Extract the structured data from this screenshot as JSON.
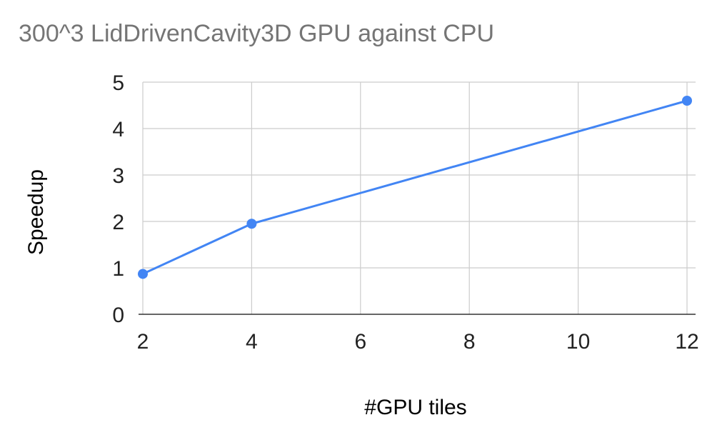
{
  "chart_data": {
    "type": "line",
    "title": "300^3 LidDrivenCavity3D GPU against CPU",
    "xlabel": "#GPU tiles",
    "ylabel": "Speedup",
    "xlim": [
      2,
      12
    ],
    "ylim": [
      0,
      5
    ],
    "xticks": [
      2,
      4,
      6,
      8,
      10,
      12
    ],
    "yticks": [
      0,
      1,
      2,
      3,
      4,
      5
    ],
    "grid": true,
    "legend": "none",
    "series": [
      {
        "color": "#4285F4",
        "x": [
          2,
          4,
          12
        ],
        "y": [
          0.87,
          1.95,
          4.6
        ]
      }
    ]
  }
}
